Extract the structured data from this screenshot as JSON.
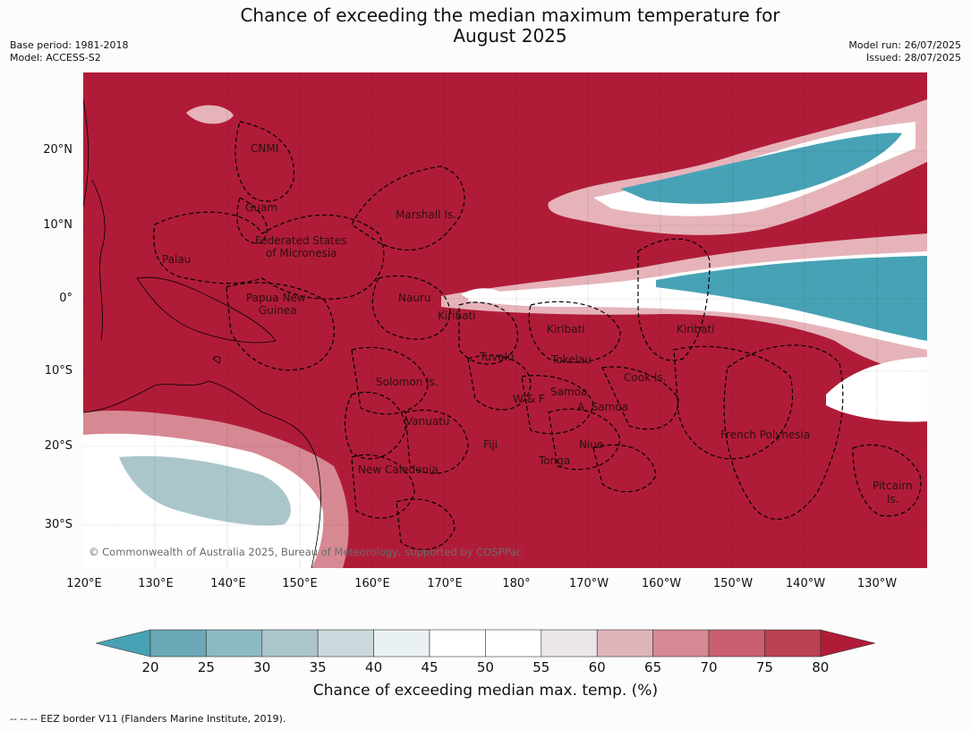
{
  "header": {
    "title_line1": "Chance of exceeding the median maximum temperature for",
    "title_line2": "August 2025",
    "base_period": "Base period: 1981-2018",
    "model": "Model: ACCESS-S2",
    "model_run": "Model run: 26/07/2025",
    "issued": "Issued: 28/07/2025"
  },
  "map": {
    "lat_labels": [
      "20°N",
      "10°N",
      "0°",
      "10°S",
      "20°S",
      "30°S"
    ],
    "lon_labels": [
      "120°E",
      "130°E",
      "140°E",
      "150°E",
      "160°E",
      "170°E",
      "180°",
      "170°W",
      "160°W",
      "150°W",
      "140°W",
      "130°W"
    ],
    "regions": {
      "cnmi": "CNMI",
      "guam": "Guam",
      "marshall": "Marshall Is.",
      "fsm_1": "Federated States",
      "fsm_2": "of Micronesia",
      "palau": "Palau",
      "nauru": "Nauru",
      "png_1": "Papua New",
      "png_2": "Guinea",
      "kiribati_w": "Kiribati",
      "kiribati_c": "Kiribati",
      "kiribati_e": "Kiribati",
      "tuvalu": "Tuvalu",
      "tokelau": "Tokelau",
      "cook": "Cook Is.",
      "solomon": "Solomon Is.",
      "samoa": "Samoa",
      "wf": "W & F",
      "asamoa": "A. Samoa",
      "vanuatu": "Vanuatu",
      "fiji": "Fiji",
      "niue": "Niue",
      "tonga": "Tonga",
      "frpoly": "French Polynesia",
      "newcal": "New Caledonia",
      "pitcairn_1": "Pitcairn",
      "pitcairn_2": "Is."
    },
    "credit": "© Commonwealth of Australia 2025, Bureau of Meteorology, supported by COSPPac",
    "colors": {
      "high": "#b01c38",
      "low": "#47a2b5"
    }
  },
  "colorbar": {
    "title": "Chance of exceeding median max. temp. (%)",
    "ticks": [
      "20",
      "25",
      "30",
      "35",
      "40",
      "45",
      "50",
      "55",
      "60",
      "65",
      "70",
      "75",
      "80"
    ],
    "colors": [
      "#47a2b5",
      "#6aa8b6",
      "#8db9c4",
      "#aac6cb",
      "#ccd9dc",
      "#eaf1f2",
      "#ffffff",
      "#ffffff",
      "#ebe7e8",
      "#dfb4ba",
      "#d68993",
      "#c9606f",
      "#bc4152",
      "#b01c38"
    ]
  },
  "footer": "--  --  -- EEZ border V11 (Flanders Marine Institute, 2019)."
}
